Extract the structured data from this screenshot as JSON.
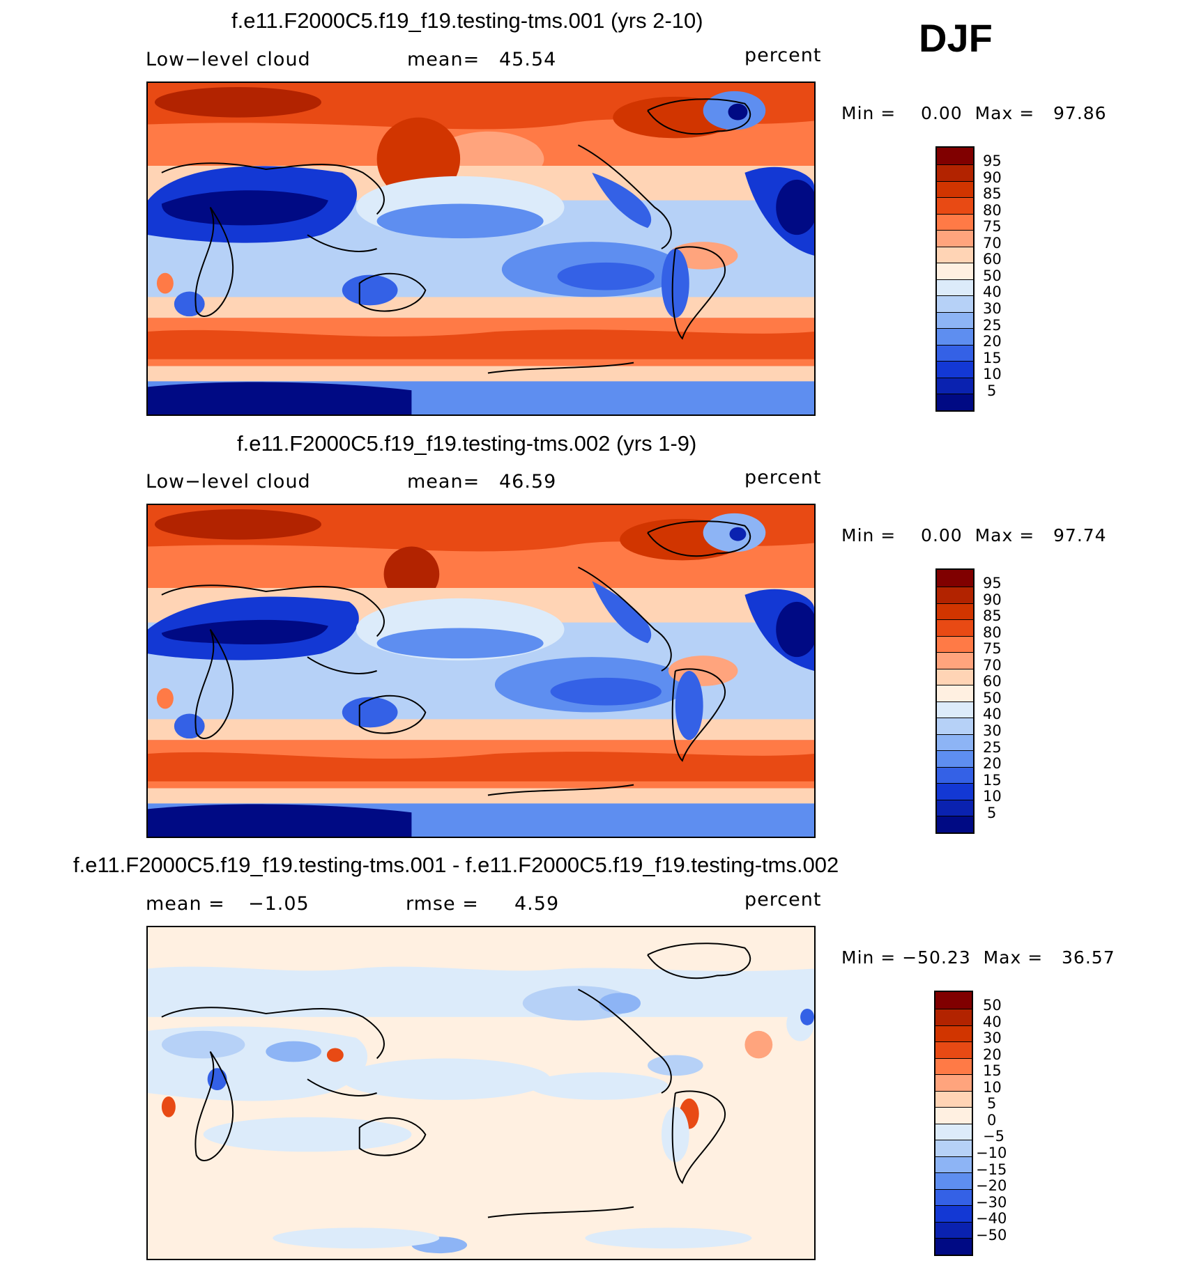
{
  "season": "DJF",
  "panels": [
    {
      "title": "f.e11.F2000C5.f19_f19.testing-tms.001 (yrs 2-10)",
      "left_label": "Low−level cloud",
      "mid_label": "mean=",
      "mid_value": "45.54",
      "units": "percent",
      "minmax_text": "Min =    0.00  Max =   97.86",
      "colorbar": {
        "colors": [
          "#800000",
          "#B22300",
          "#D13500",
          "#E84A14",
          "#FF7A46",
          "#FFA47D",
          "#FFD4B5",
          "#FFF0E1",
          "#DCEBFA",
          "#B6D1F7",
          "#8DB4F5",
          "#5E8EF0",
          "#3461E6",
          "#1338D4",
          "#0A22B0",
          "#000A84"
        ],
        "ticks": [
          "95",
          "90",
          "85",
          "80",
          "75",
          "70",
          "60",
          "50",
          "40",
          "30",
          "25",
          "20",
          "15",
          "10",
          "5"
        ]
      }
    },
    {
      "title": "f.e11.F2000C5.f19_f19.testing-tms.002 (yrs 1-9)",
      "left_label": "Low−level cloud",
      "mid_label": "mean=",
      "mid_value": "46.59",
      "units": "percent",
      "minmax_text": "Min =    0.00  Max =   97.74",
      "colorbar": {
        "colors": [
          "#800000",
          "#B22300",
          "#D13500",
          "#E84A14",
          "#FF7A46",
          "#FFA47D",
          "#FFD4B5",
          "#FFF0E1",
          "#DCEBFA",
          "#B6D1F7",
          "#8DB4F5",
          "#5E8EF0",
          "#3461E6",
          "#1338D4",
          "#0A22B0",
          "#000A84"
        ],
        "ticks": [
          "95",
          "90",
          "85",
          "80",
          "75",
          "70",
          "60",
          "50",
          "40",
          "30",
          "25",
          "20",
          "15",
          "10",
          "5"
        ]
      }
    },
    {
      "title": "f.e11.F2000C5.f19_f19.testing-tms.001 - f.e11.F2000C5.f19_f19.testing-tms.002",
      "left_label": "mean =",
      "left_value": "−1.05",
      "mid_label": "rmse =",
      "mid_value": "4.59",
      "units": "percent",
      "minmax_text": "Min = −50.23  Max =   36.57",
      "colorbar": {
        "colors": [
          "#800000",
          "#B22300",
          "#D13500",
          "#E84A14",
          "#FF7A46",
          "#FFA47D",
          "#FFD4B5",
          "#FFF0E1",
          "#DCEBFA",
          "#B6D1F7",
          "#8DB4F5",
          "#5E8EF0",
          "#3461E6",
          "#1338D4",
          "#0A22B0",
          "#000A84"
        ],
        "ticks": [
          "50",
          "40",
          "30",
          "20",
          "15",
          "10",
          "5",
          "0",
          "−5",
          "−10",
          "−15",
          "−20",
          "−30",
          "−40",
          "−50"
        ]
      }
    }
  ]
}
